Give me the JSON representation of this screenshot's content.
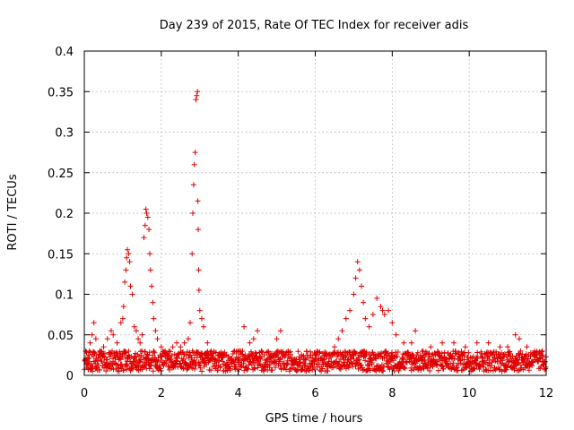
{
  "chart_data": {
    "type": "scatter",
    "title": "Day 239 of 2015, Rate Of TEC Index for receiver adis",
    "xlabel": "GPS time / hours",
    "ylabel": "ROTI / TECUs",
    "xlim": [
      0,
      12
    ],
    "ylim": [
      0,
      0.4
    ],
    "xticks": [
      0,
      2,
      4,
      6,
      8,
      10,
      12
    ],
    "xtick_labels": [
      "0",
      "2",
      "4",
      "6",
      "8",
      "10",
      "12"
    ],
    "yticks": [
      0,
      0.05,
      0.1,
      0.15,
      0.2,
      0.25,
      0.3,
      0.35,
      0.4
    ],
    "ytick_labels": [
      "0",
      "0.05",
      "0.1",
      "0.15",
      "0.2",
      "0.25",
      "0.3",
      "0.35",
      "0.4"
    ],
    "grid": true,
    "marker": "plus",
    "color": "#e00000",
    "series": [
      {
        "name": "ROTI",
        "points": [
          [
            0.05,
            0.02
          ],
          [
            0.1,
            0.025
          ],
          [
            0.15,
            0.04
          ],
          [
            0.2,
            0.05
          ],
          [
            0.25,
            0.065
          ],
          [
            0.3,
            0.045
          ],
          [
            0.4,
            0.03
          ],
          [
            0.5,
            0.035
          ],
          [
            0.6,
            0.045
          ],
          [
            0.7,
            0.055
          ],
          [
            0.75,
            0.05
          ],
          [
            0.85,
            0.04
          ],
          [
            0.95,
            0.065
          ],
          [
            1.0,
            0.07
          ],
          [
            1.02,
            0.085
          ],
          [
            1.05,
            0.115
          ],
          [
            1.08,
            0.13
          ],
          [
            1.1,
            0.145
          ],
          [
            1.12,
            0.155
          ],
          [
            1.15,
            0.15
          ],
          [
            1.18,
            0.14
          ],
          [
            1.2,
            0.11
          ],
          [
            1.25,
            0.1
          ],
          [
            1.3,
            0.06
          ],
          [
            1.35,
            0.055
          ],
          [
            1.4,
            0.045
          ],
          [
            1.45,
            0.04
          ],
          [
            1.5,
            0.05
          ],
          [
            1.55,
            0.17
          ],
          [
            1.58,
            0.185
          ],
          [
            1.6,
            0.205
          ],
          [
            1.62,
            0.2
          ],
          [
            1.65,
            0.195
          ],
          [
            1.68,
            0.18
          ],
          [
            1.7,
            0.15
          ],
          [
            1.72,
            0.13
          ],
          [
            1.75,
            0.11
          ],
          [
            1.78,
            0.09
          ],
          [
            1.8,
            0.07
          ],
          [
            1.85,
            0.055
          ],
          [
            1.9,
            0.045
          ],
          [
            2.0,
            0.035
          ],
          [
            2.1,
            0.03
          ],
          [
            2.2,
            0.03
          ],
          [
            2.3,
            0.035
          ],
          [
            2.4,
            0.04
          ],
          [
            2.5,
            0.035
          ],
          [
            2.6,
            0.04
          ],
          [
            2.7,
            0.045
          ],
          [
            2.75,
            0.065
          ],
          [
            2.8,
            0.15
          ],
          [
            2.82,
            0.2
          ],
          [
            2.84,
            0.235
          ],
          [
            2.86,
            0.26
          ],
          [
            2.88,
            0.275
          ],
          [
            2.9,
            0.34
          ],
          [
            2.92,
            0.345
          ],
          [
            2.94,
            0.35
          ],
          [
            2.95,
            0.215
          ],
          [
            2.96,
            0.18
          ],
          [
            2.97,
            0.13
          ],
          [
            2.98,
            0.105
          ],
          [
            3.0,
            0.08
          ],
          [
            3.05,
            0.07
          ],
          [
            3.1,
            0.06
          ],
          [
            3.2,
            0.04
          ],
          [
            3.3,
            0.03
          ],
          [
            3.5,
            0.025
          ],
          [
            3.7,
            0.025
          ],
          [
            3.9,
            0.03
          ],
          [
            4.0,
            0.03
          ],
          [
            4.15,
            0.06
          ],
          [
            4.3,
            0.04
          ],
          [
            4.4,
            0.045
          ],
          [
            4.5,
            0.055
          ],
          [
            4.6,
            0.03
          ],
          [
            4.8,
            0.025
          ],
          [
            5.0,
            0.045
          ],
          [
            5.1,
            0.055
          ],
          [
            5.2,
            0.025
          ],
          [
            5.5,
            0.02
          ],
          [
            5.8,
            0.025
          ],
          [
            6.0,
            0.02
          ],
          [
            6.3,
            0.025
          ],
          [
            6.5,
            0.035
          ],
          [
            6.6,
            0.045
          ],
          [
            6.7,
            0.055
          ],
          [
            6.8,
            0.07
          ],
          [
            6.9,
            0.08
          ],
          [
            7.0,
            0.1
          ],
          [
            7.05,
            0.12
          ],
          [
            7.1,
            0.14
          ],
          [
            7.15,
            0.13
          ],
          [
            7.2,
            0.11
          ],
          [
            7.25,
            0.09
          ],
          [
            7.3,
            0.07
          ],
          [
            7.4,
            0.06
          ],
          [
            7.5,
            0.075
          ],
          [
            7.6,
            0.095
          ],
          [
            7.7,
            0.085
          ],
          [
            7.75,
            0.08
          ],
          [
            7.8,
            0.075
          ],
          [
            7.9,
            0.08
          ],
          [
            8.0,
            0.065
          ],
          [
            8.1,
            0.05
          ],
          [
            8.3,
            0.04
          ],
          [
            8.5,
            0.04
          ],
          [
            8.6,
            0.055
          ],
          [
            8.8,
            0.03
          ],
          [
            9.0,
            0.035
          ],
          [
            9.3,
            0.04
          ],
          [
            9.6,
            0.04
          ],
          [
            9.9,
            0.035
          ],
          [
            10.2,
            0.04
          ],
          [
            10.5,
            0.04
          ],
          [
            10.8,
            0.035
          ],
          [
            11.0,
            0.035
          ],
          [
            11.2,
            0.05
          ],
          [
            11.3,
            0.045
          ],
          [
            11.5,
            0.035
          ],
          [
            11.7,
            0.03
          ],
          [
            11.9,
            0.03
          ]
        ],
        "background_band": [
          0.005,
          0.03
        ]
      }
    ]
  }
}
